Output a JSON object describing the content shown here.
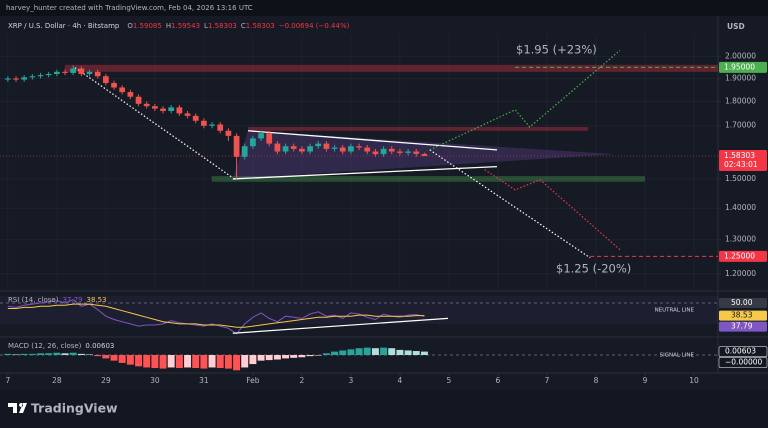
{
  "header": {
    "credit": "harvey_hunter created with TradingView.com, Feb 04, 2026 13:16 UTC",
    "currency": "USD"
  },
  "logo": "TradingView",
  "annotations": {
    "target_up": "$1.95 (+23%)",
    "target_down": "$1.25 (-20%)"
  },
  "chart_data": {
    "type": "candlestick",
    "symbol": "XRP / U.S. Dollar · 4h · Bitstamp",
    "ohlc_keys": [
      "O",
      "H",
      "L",
      "C"
    ],
    "change_label": "−0.00694 (−0.44%)",
    "up_color": "#26a69a",
    "down_color": "#ef5350",
    "log_scale": true,
    "grid": true,
    "xlim": [
      26.84,
      41.49
    ],
    "ylim": [
      1.155,
      2.08
    ],
    "xticks": [
      {
        "value": 27,
        "label": "7"
      },
      28,
      29,
      30,
      31,
      {
        "value": 32,
        "label": "Feb"
      },
      {
        "value": 33,
        "label": "2"
      },
      {
        "value": 34,
        "label": "3"
      },
      {
        "value": 35,
        "label": "4"
      },
      {
        "value": 36,
        "label": "5"
      },
      {
        "value": 37,
        "label": "6"
      },
      {
        "value": 38,
        "label": "7"
      },
      {
        "value": 39,
        "label": "8"
      },
      {
        "value": 40,
        "label": "9"
      },
      {
        "value": 41,
        "label": "10"
      }
    ],
    "yticks": [
      {
        "value": 2,
        "label": "2.00000"
      },
      {
        "value": 1.9,
        "label": "1.90000"
      },
      {
        "value": 1.8,
        "label": "1.80000"
      },
      {
        "value": 1.7,
        "label": "1.70000"
      },
      {
        "value": 1.5,
        "label": "1.50000"
      },
      {
        "value": 1.4,
        "label": "1.40000"
      },
      {
        "value": 1.3,
        "label": "1.30000"
      },
      {
        "value": 1.2,
        "label": "1.20000"
      }
    ],
    "x": [
      27,
      27.167,
      27.333,
      27.5,
      27.667,
      27.833,
      28,
      28.167,
      28.333,
      28.5,
      28.667,
      28.833,
      29,
      29.167,
      29.333,
      29.5,
      29.667,
      29.833,
      30,
      30.167,
      30.333,
      30.5,
      30.667,
      30.833,
      31,
      31.167,
      31.333,
      31.5,
      31.667,
      31.833,
      32,
      32.167,
      32.333,
      32.5,
      32.667,
      32.833,
      33,
      33.167,
      33.333,
      33.5,
      33.667,
      33.833,
      34,
      34.167,
      34.333,
      34.5,
      34.667,
      34.833,
      35,
      35.167,
      35.333,
      35.5
    ],
    "open": [
      1.895,
      1.9,
      1.895,
      1.905,
      1.91,
      1.915,
      1.92,
      1.93,
      1.925,
      1.945,
      1.92,
      1.93,
      1.91,
      1.88,
      1.86,
      1.84,
      1.82,
      1.79,
      1.78,
      1.77,
      1.76,
      1.775,
      1.75,
      1.74,
      1.72,
      1.7,
      1.705,
      1.68,
      1.66,
      1.58,
      1.62,
      1.65,
      1.67,
      1.63,
      1.6,
      1.62,
      1.61,
      1.6,
      1.62,
      1.63,
      1.61,
      1.615,
      1.6,
      1.62,
      1.615,
      1.6,
      1.59,
      1.61,
      1.6,
      1.595,
      1.6,
      1.59085
    ],
    "high": [
      1.91,
      1.91,
      1.915,
      1.92,
      1.925,
      1.93,
      1.94,
      1.94,
      1.96,
      1.955,
      1.94,
      1.94,
      1.92,
      1.89,
      1.87,
      1.85,
      1.83,
      1.8,
      1.79,
      1.78,
      1.785,
      1.785,
      1.76,
      1.75,
      1.73,
      1.715,
      1.715,
      1.69,
      1.67,
      1.63,
      1.66,
      1.68,
      1.68,
      1.64,
      1.63,
      1.63,
      1.62,
      1.63,
      1.64,
      1.64,
      1.625,
      1.625,
      1.63,
      1.63,
      1.625,
      1.61,
      1.62,
      1.62,
      1.61,
      1.61,
      1.61,
      1.59543
    ],
    "low": [
      1.885,
      1.885,
      1.885,
      1.895,
      1.9,
      1.905,
      1.91,
      1.915,
      1.915,
      1.91,
      1.91,
      1.9,
      1.87,
      1.85,
      1.83,
      1.81,
      1.78,
      1.77,
      1.76,
      1.75,
      1.75,
      1.74,
      1.73,
      1.71,
      1.69,
      1.69,
      1.67,
      1.64,
      1.5,
      1.57,
      1.61,
      1.64,
      1.62,
      1.59,
      1.59,
      1.6,
      1.59,
      1.59,
      1.61,
      1.6,
      1.6,
      1.59,
      1.59,
      1.605,
      1.59,
      1.58,
      1.58,
      1.59,
      1.585,
      1.585,
      1.581,
      1.58303
    ],
    "close": [
      1.9,
      1.895,
      1.905,
      1.91,
      1.915,
      1.92,
      1.93,
      1.925,
      1.945,
      1.92,
      1.93,
      1.91,
      1.88,
      1.86,
      1.84,
      1.82,
      1.79,
      1.78,
      1.77,
      1.76,
      1.775,
      1.75,
      1.74,
      1.72,
      1.7,
      1.705,
      1.68,
      1.66,
      1.58,
      1.62,
      1.65,
      1.67,
      1.63,
      1.6,
      1.62,
      1.61,
      1.6,
      1.62,
      1.63,
      1.61,
      1.615,
      1.6,
      1.62,
      1.615,
      1.6,
      1.59,
      1.61,
      1.6,
      1.595,
      1.6,
      1.59085,
      1.58303
    ],
    "last_price_color": "#f23645",
    "countdown": "02:43:01",
    "price_tags": [
      {
        "value": 1.95,
        "label": "1.95000",
        "color": "#4caf50",
        "from": 37.35
      },
      {
        "value": 1.25,
        "label": "1.25000",
        "color": "#f23645",
        "from": 38.88
      }
    ],
    "drawings": [
      {
        "kind": "zone",
        "x": [
          28.16,
          41.49
        ],
        "y": [
          1.962,
          1.93
        ],
        "color": "rgba(242,54,69,0.35)"
      },
      {
        "kind": "zone",
        "x": [
          31.9,
          38.84
        ],
        "y": [
          1.695,
          1.68
        ],
        "color": "rgba(242,54,69,0.35)"
      },
      {
        "kind": "zone",
        "x": [
          31.16,
          40.0
        ],
        "y": [
          1.51,
          1.49
        ],
        "color": "rgba(76,175,80,0.35)"
      },
      {
        "kind": "area",
        "x": [
          31.9,
          39.4,
          31.59
        ],
        "y": [
          1.68,
          1.59,
          1.5
        ],
        "color": "rgba(126,87,194,0.25)"
      },
      {
        "kind": "line",
        "x": [
          31.9,
          36.98
        ],
        "y": [
          1.68,
          1.606
        ],
        "color": "#ffffff",
        "dash": false
      },
      {
        "kind": "line",
        "x": [
          31.59,
          36.98
        ],
        "y": [
          1.5,
          1.544
        ],
        "color": "#ffffff",
        "dash": false
      },
      {
        "kind": "line",
        "x": [
          28.37,
          31.59
        ],
        "y": [
          1.949,
          1.504
        ],
        "color": "#ffffff",
        "dash": true
      },
      {
        "kind": "line",
        "x": [
          35.61,
          38.88
        ],
        "y": [
          1.606,
          1.246
        ],
        "color": "#ffffff",
        "dash": true
      },
      {
        "kind": "line",
        "x": [
          35.61,
          37.35,
          37.65,
          39.49
        ],
        "y": [
          1.606,
          1.765,
          1.695,
          2.03
        ],
        "color": "#4caf50",
        "dash": true
      },
      {
        "kind": "line",
        "x": [
          36.73,
          37.35,
          37.86,
          39.49
        ],
        "y": [
          1.533,
          1.462,
          1.497,
          1.27
        ],
        "color": "#f23645",
        "dash": true
      }
    ],
    "rsi": {
      "label": "RSI (14, close)",
      "ylim": [
        20,
        60
      ],
      "neutral": {
        "value": 50,
        "label": "50.00"
      },
      "neutral_text": "NEUTRAL LINE",
      "series": [
        {
          "color": "#7e57c2",
          "values": [
            47,
            46,
            48,
            49,
            50,
            51,
            52,
            50,
            53,
            47,
            49,
            44,
            38,
            35,
            33,
            31,
            29,
            30,
            30,
            31,
            34,
            32,
            31,
            30,
            29,
            31,
            29,
            27,
            22,
            31,
            37,
            41,
            36,
            33,
            38,
            37,
            36,
            40,
            42,
            38,
            39,
            36,
            41,
            40,
            37,
            35,
            40,
            38,
            37,
            39,
            39.5,
            37.79
          ]
        },
        {
          "color": "#f7c948",
          "values": [
            45,
            45,
            46,
            46,
            47,
            47,
            48,
            48,
            49,
            49,
            49,
            48,
            47,
            45,
            43,
            41,
            39,
            37,
            35,
            33,
            32,
            31,
            31,
            31,
            30,
            30,
            30,
            29,
            28,
            28,
            29,
            30,
            31,
            32,
            33,
            34,
            35,
            36,
            37,
            37,
            38,
            38,
            38,
            39,
            39,
            38,
            38,
            38,
            38,
            38,
            38.5,
            38.53
          ]
        }
      ],
      "trendline": {
        "x": [
          31.59,
          35.98
        ],
        "y": [
          22.5,
          36
        ],
        "color": "#ffffff"
      }
    },
    "macd": {
      "label": "MACD (12, 26, close)",
      "ylim": [
        -0.03,
        0.03
      ],
      "colors": [
        "#26a69a",
        "#b2dfdb",
        "#ff5252",
        "#ffcdd2"
      ],
      "values": [
        0.002,
        0.001,
        0.002,
        0.002,
        0.003,
        0.003,
        0.004,
        0.003,
        0.004,
        0.002,
        0.001,
        -0.002,
        -0.006,
        -0.01,
        -0.014,
        -0.017,
        -0.02,
        -0.022,
        -0.023,
        -0.024,
        -0.022,
        -0.023,
        -0.022,
        -0.023,
        -0.024,
        -0.022,
        -0.023,
        -0.024,
        -0.027,
        -0.022,
        -0.016,
        -0.01,
        -0.009,
        -0.008,
        -0.006,
        -0.005,
        -0.004,
        -0.002,
        -0.001,
        0.003,
        0.006,
        0.008,
        0.01,
        0.012,
        0.013,
        0.012,
        0.013,
        0.012,
        0.009,
        0.008,
        0.007,
        0.00603
      ],
      "signal": {
        "value": 0,
        "label": "−0.00000"
      },
      "signal_text": "SIGNAL LINE"
    }
  }
}
